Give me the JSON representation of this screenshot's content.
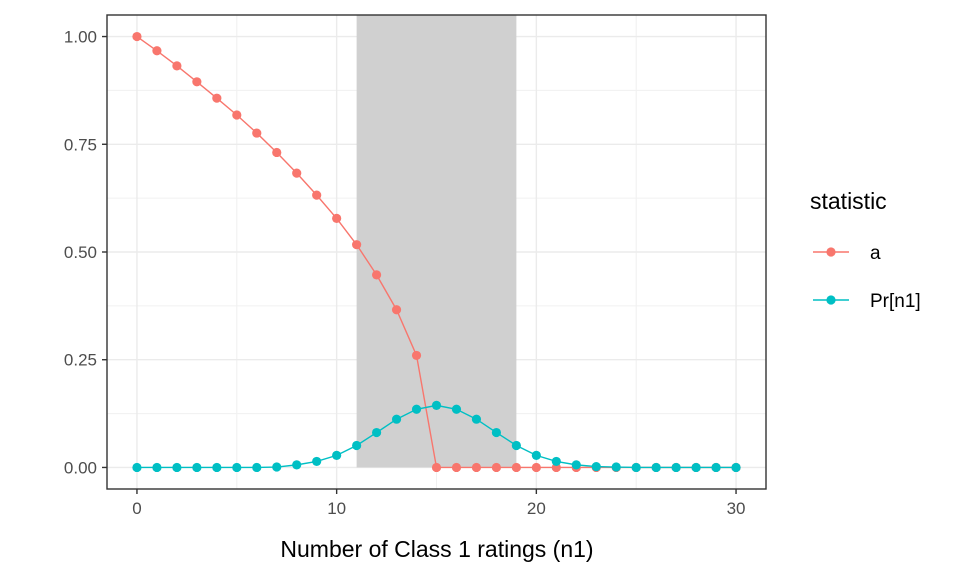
{
  "chart_data": {
    "type": "line",
    "xlabel": "Number of Class 1 ratings (n1)",
    "ylabel": "",
    "xlim": [
      -1.5,
      31.5
    ],
    "ylim": [
      -0.05,
      1.05
    ],
    "x_ticks": [
      0,
      10,
      20,
      30
    ],
    "y_ticks": [
      0.0,
      0.25,
      0.5,
      0.75,
      1.0
    ],
    "x_tick_labels": [
      "0",
      "10",
      "20",
      "30"
    ],
    "y_tick_labels": [
      "0.00",
      "0.25",
      "0.50",
      "0.75",
      "1.00"
    ],
    "grid": true,
    "shaded_region": {
      "x_start": 11,
      "x_end": 19,
      "y_start": 0,
      "y_end": 1.05,
      "color": "#d0d0d0"
    },
    "legend": {
      "title": "statistic",
      "position": "right"
    },
    "x": [
      0,
      1,
      2,
      3,
      4,
      5,
      6,
      7,
      8,
      9,
      10,
      11,
      12,
      13,
      14,
      15,
      16,
      17,
      18,
      19,
      20,
      21,
      22,
      23,
      24,
      25,
      26,
      27,
      28,
      29,
      30
    ],
    "series": [
      {
        "name": "a",
        "color": "#F8766D",
        "values": [
          1.0,
          0.967,
          0.932,
          0.895,
          0.857,
          0.818,
          0.776,
          0.731,
          0.683,
          0.632,
          0.578,
          0.517,
          0.447,
          0.366,
          0.26,
          0,
          0,
          0,
          0,
          0,
          0,
          0,
          0,
          0,
          0,
          0,
          0,
          0,
          0,
          0,
          0
        ]
      },
      {
        "name": "Pr[n1]",
        "color": "#00BFC4",
        "values": [
          0,
          0,
          0,
          0,
          0,
          0,
          0,
          0.001,
          0.006,
          0.014,
          0.028,
          0.051,
          0.081,
          0.112,
          0.135,
          0.144,
          0.135,
          0.112,
          0.081,
          0.051,
          0.028,
          0.014,
          0.006,
          0.002,
          0.001,
          0,
          0,
          0,
          0,
          0,
          0
        ]
      }
    ]
  }
}
